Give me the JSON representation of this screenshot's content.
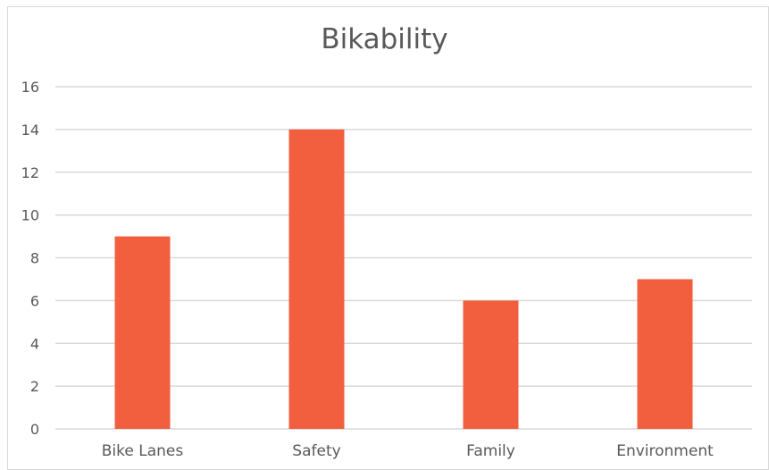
{
  "chart_data": {
    "type": "bar",
    "title": "Bikability",
    "categories": [
      "Bike Lanes",
      "Safety",
      "Family",
      "Environment"
    ],
    "values": [
      9,
      14,
      6,
      7
    ],
    "ylim": [
      0,
      16
    ],
    "yticks": [
      0,
      2,
      4,
      6,
      8,
      10,
      12,
      14,
      16
    ],
    "grid": true,
    "legend": "none",
    "bar_color": "#f15f3f",
    "grid_color": "#d9d9d9"
  }
}
